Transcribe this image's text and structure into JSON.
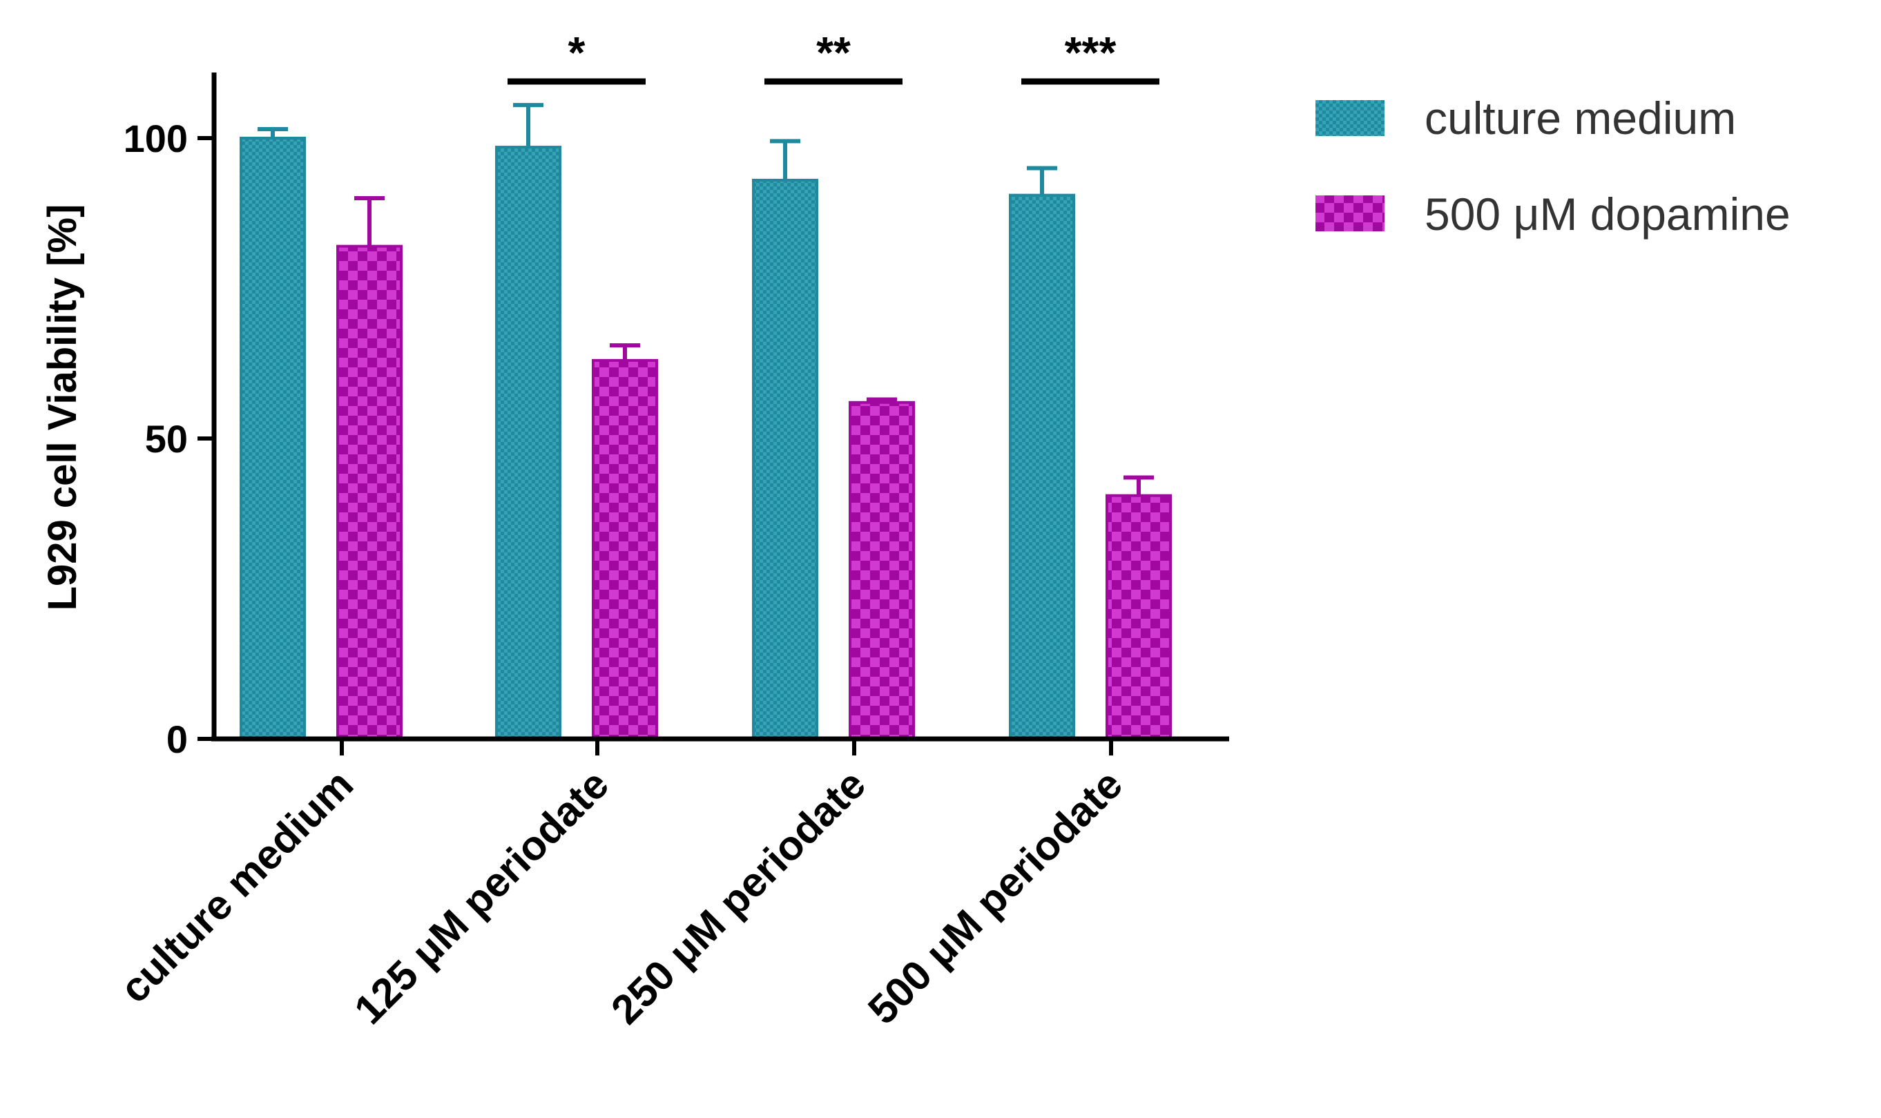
{
  "chart_data": {
    "type": "bar",
    "title": "",
    "xlabel": "",
    "ylabel": "L929 cell Viability [%]",
    "ylim": [
      0,
      110
    ],
    "yticks": [
      0,
      50,
      100
    ],
    "ytick_labels": [
      "0",
      "50",
      "100"
    ],
    "categories": [
      "culture medium",
      "125 μM periodate",
      "250 μM periodate",
      "500 μM periodate"
    ],
    "series": [
      {
        "name": "culture medium",
        "color": "#1f8a9e",
        "values": [
          100,
          98.5,
          93,
          90.5
        ],
        "errors": [
          1.5,
          7,
          6.5,
          4.5
        ]
      },
      {
        "name": "500 μM dopamine",
        "color": "#a0089f",
        "values": [
          82,
          63,
          56,
          40.5
        ],
        "errors": [
          8,
          2.5,
          0.5,
          3
        ]
      }
    ],
    "significance": [
      {
        "category_index": 1,
        "label": "*"
      },
      {
        "category_index": 2,
        "label": "**"
      },
      {
        "category_index": 3,
        "label": "***"
      }
    ],
    "legend_position": "top-right",
    "grid": false
  },
  "colors": {
    "teal": "#1f8a9e",
    "teal_light": "#3aa7b9",
    "magenta": "#a0089f",
    "magenta_light": "#cc33cc",
    "axis": "#000000"
  }
}
